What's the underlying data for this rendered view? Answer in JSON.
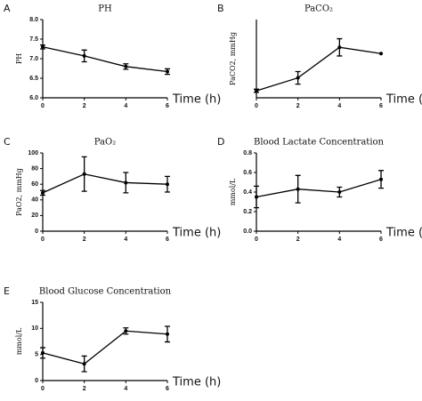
{
  "chart_data": [
    {
      "type": "line",
      "label": "A",
      "title": "PH",
      "y_label": "PH",
      "x_label": "Time (h)",
      "x": [
        0,
        2,
        4,
        6
      ],
      "series": [
        {
          "color": "#000000",
          "values": [
            7.3,
            7.07,
            6.8,
            6.67
          ],
          "errors": [
            0.05,
            0.15,
            0.07,
            0.07
          ]
        }
      ],
      "xlim": [
        0,
        6
      ],
      "xticks": [
        0,
        2,
        4,
        6
      ],
      "ylim": [
        6,
        8
      ],
      "yticks": [
        {
          "value": 6,
          "label": "6.0"
        },
        6.5,
        {
          "value": 7,
          "label": "7.0"
        },
        7.5,
        {
          "value": 8,
          "label": "8.0"
        }
      ]
    },
    {
      "type": "line",
      "label": "B",
      "title": "PaCO₂",
      "y_label": "PaCO2, mmHg",
      "x_label": "Time (h)",
      "x": [
        0,
        2,
        4,
        6
      ],
      "series": [
        {
          "color": "#000000",
          "values": [
            48,
            81,
            159,
            143
          ],
          "errors": [
            4,
            16,
            22,
            0
          ]
        }
      ],
      "xlim": [
        0,
        6
      ],
      "xticks": [
        0,
        2,
        4,
        6
      ],
      "ylim": [
        30,
        230
      ]
    },
    {
      "type": "line",
      "label": "C",
      "title": "PaO₂",
      "y_label": "PaO2, mmHg",
      "x_label": "Time (h)",
      "x": [
        0,
        2,
        4,
        6
      ],
      "series": [
        {
          "color": "#000000",
          "values": [
            49,
            73,
            62,
            60
          ],
          "errors": [
            3,
            22,
            13,
            10
          ]
        }
      ],
      "xlim": [
        0,
        6
      ],
      "xticks": [
        0,
        2,
        4,
        6
      ],
      "ylim": [
        0,
        100
      ],
      "yticks": [
        0,
        20,
        40,
        60,
        80,
        100
      ]
    },
    {
      "type": "line",
      "label": "D",
      "title": "Blood Lactate Concentration",
      "y_label": "mmol/L",
      "x_label": "Time (h)",
      "x": [
        0,
        2,
        4,
        6
      ],
      "series": [
        {
          "color": "#000000",
          "values": [
            0.35,
            0.43,
            0.4,
            0.53
          ],
          "errors": [
            0.11,
            0.14,
            0.05,
            0.09
          ]
        }
      ],
      "xlim": [
        0,
        6
      ],
      "xticks": [
        0,
        2,
        4,
        6
      ],
      "ylim": [
        0,
        0.8
      ],
      "yticks": [
        {
          "value": 0,
          "label": "0.0"
        },
        0.2,
        0.4,
        0.6,
        0.8
      ]
    },
    {
      "type": "line",
      "label": "E",
      "title": "Blood Glucose Concentration",
      "y_label": "mmol/L",
      "x_label": "Time (h)",
      "x": [
        0,
        2,
        4,
        6
      ],
      "series": [
        {
          "color": "#000000",
          "values": [
            5.3,
            3.2,
            9.5,
            8.9
          ],
          "errors": [
            1.0,
            1.5,
            0.6,
            1.5
          ]
        }
      ],
      "xlim": [
        0,
        6
      ],
      "xticks": [
        0,
        2,
        4,
        6
      ],
      "ylim": [
        0,
        15
      ],
      "yticks": [
        0,
        5,
        10,
        15
      ]
    }
  ]
}
